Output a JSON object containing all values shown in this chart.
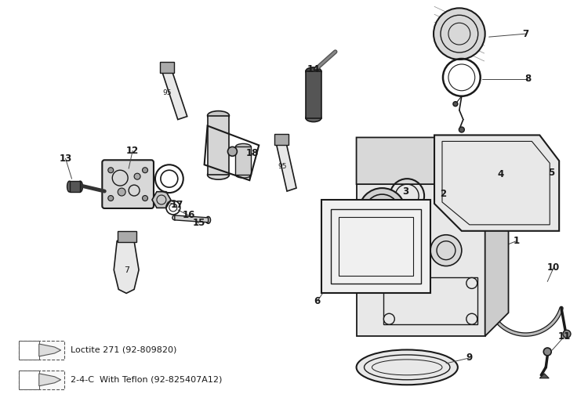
{
  "bg_color": "#ffffff",
  "line_color": "#1a1a1a",
  "fig_width": 7.5,
  "fig_height": 5.17,
  "dpi": 100,
  "legend": [
    {
      "number": "7",
      "text": "Loctite 271 (92-809820)"
    },
    {
      "number": "95",
      "text": "2-4-C  With Teflon (92-825407A12)"
    }
  ]
}
